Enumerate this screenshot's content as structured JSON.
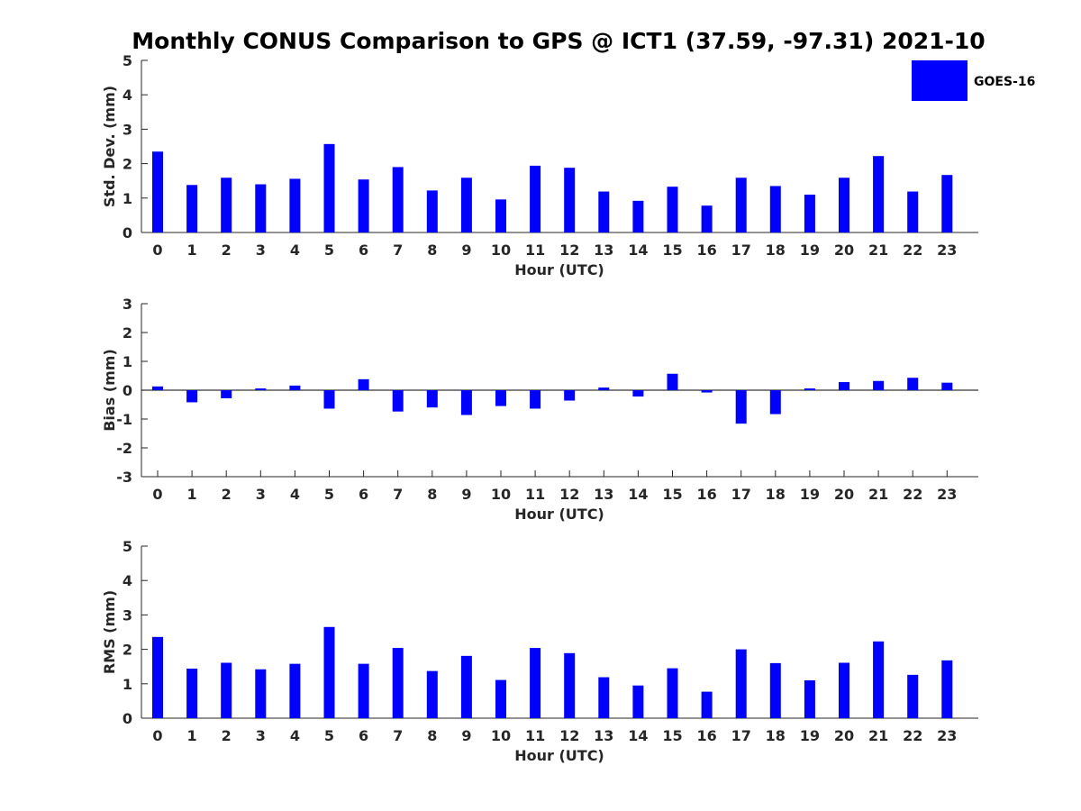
{
  "title": "Monthly CONUS Comparison to GPS @ ICT1 (37.59, -97.31) 2021-10",
  "legend": {
    "label": "GOES-16",
    "color": "#0000ff"
  },
  "chart_data": [
    {
      "type": "bar",
      "xlabel": "Hour (UTC)",
      "ylabel": "Std. Dev. (mm)",
      "categories": [
        "0",
        "1",
        "2",
        "3",
        "4",
        "5",
        "6",
        "7",
        "8",
        "9",
        "10",
        "11",
        "12",
        "13",
        "14",
        "15",
        "16",
        "17",
        "18",
        "19",
        "20",
        "21",
        "22",
        "23"
      ],
      "ylim": [
        0,
        5
      ],
      "yticks": [
        0,
        1,
        2,
        3,
        4,
        5
      ],
      "series": [
        {
          "name": "GOES-16",
          "color": "#0000ff",
          "values": [
            2.35,
            1.38,
            1.59,
            1.4,
            1.56,
            2.57,
            1.54,
            1.9,
            1.22,
            1.59,
            0.96,
            1.94,
            1.88,
            1.19,
            0.92,
            1.33,
            0.78,
            1.59,
            1.35,
            1.1,
            1.59,
            2.22,
            1.19,
            1.67
          ]
        }
      ]
    },
    {
      "type": "bar",
      "xlabel": "Hour (UTC)",
      "ylabel": "Bias (mm)",
      "categories": [
        "0",
        "1",
        "2",
        "3",
        "4",
        "5",
        "6",
        "7",
        "8",
        "9",
        "10",
        "11",
        "12",
        "13",
        "14",
        "15",
        "16",
        "17",
        "18",
        "19",
        "20",
        "21",
        "22",
        "23"
      ],
      "ylim": [
        -3,
        3
      ],
      "yticks": [
        -3,
        -2,
        -1,
        0,
        1,
        2,
        3
      ],
      "series": [
        {
          "name": "GOES-16",
          "color": "#0000ff",
          "values": [
            0.13,
            -0.42,
            -0.28,
            0.06,
            0.16,
            -0.64,
            0.38,
            -0.74,
            -0.6,
            -0.86,
            -0.55,
            -0.64,
            -0.36,
            0.09,
            -0.22,
            0.57,
            -0.08,
            -1.16,
            -0.83,
            0.06,
            0.28,
            0.32,
            0.43,
            0.26
          ]
        }
      ]
    },
    {
      "type": "bar",
      "xlabel": "Hour (UTC)",
      "ylabel": "RMS (mm)",
      "categories": [
        "0",
        "1",
        "2",
        "3",
        "4",
        "5",
        "6",
        "7",
        "8",
        "9",
        "10",
        "11",
        "12",
        "13",
        "14",
        "15",
        "16",
        "17",
        "18",
        "19",
        "20",
        "21",
        "22",
        "23"
      ],
      "ylim": [
        0,
        5
      ],
      "yticks": [
        0,
        1,
        2,
        3,
        4,
        5
      ],
      "series": [
        {
          "name": "GOES-16",
          "color": "#0000ff",
          "values": [
            2.36,
            1.44,
            1.61,
            1.42,
            1.58,
            2.65,
            1.58,
            2.04,
            1.37,
            1.81,
            1.11,
            2.04,
            1.89,
            1.19,
            0.95,
            1.45,
            0.77,
            2.0,
            1.6,
            1.1,
            1.61,
            2.23,
            1.26,
            1.68
          ]
        }
      ]
    }
  ]
}
